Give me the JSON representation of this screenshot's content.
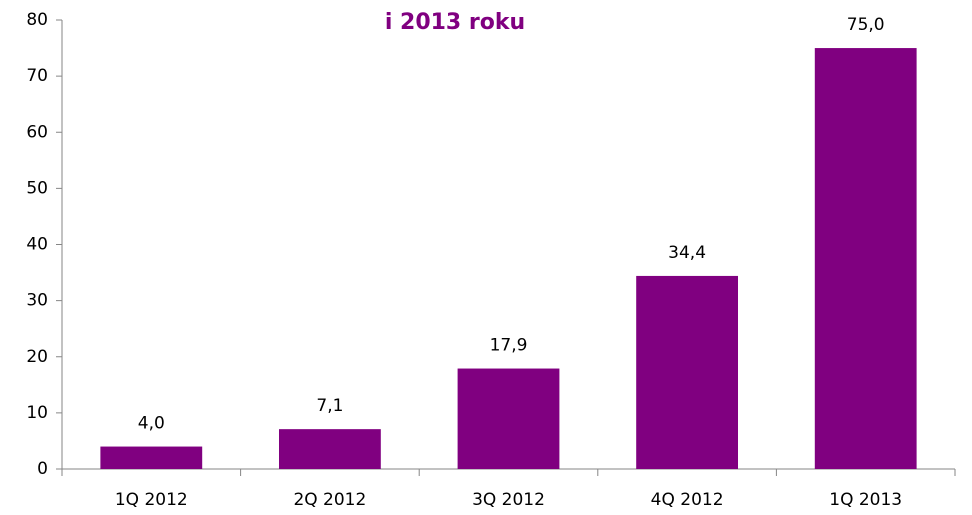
{
  "chart_data": {
    "type": "bar",
    "title": "i 2013 roku",
    "categories": [
      "1Q 2012",
      "2Q 2012",
      "3Q 2012",
      "4Q 2012",
      "1Q 2013"
    ],
    "values": [
      4.0,
      7.1,
      17.9,
      34.4,
      75.0
    ],
    "value_labels": [
      "4,0",
      "7,1",
      "17,9",
      "34,4",
      "75,0"
    ],
    "color": "#800080",
    "ylim": [
      0,
      80
    ],
    "yticks": [
      0,
      10,
      20,
      30,
      40,
      50,
      60,
      70,
      80
    ],
    "grid": false
  }
}
